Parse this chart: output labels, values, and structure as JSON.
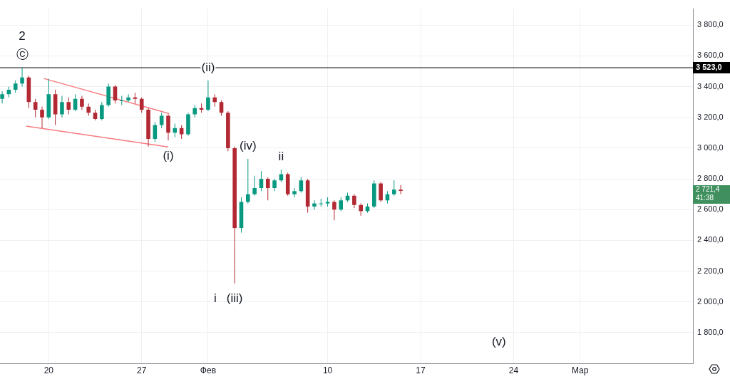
{
  "chart_data": {
    "type": "candlestick",
    "x": [
      "--01-16T12:00",
      "--01-17T00:00",
      "--01-17T12:00",
      "--01-18T00:00",
      "--01-18T12:00",
      "--01-19T00:00",
      "--01-19T12:00",
      "--01-20T00:00",
      "--01-20T12:00",
      "--01-21T00:00",
      "--01-21T12:00",
      "--01-22T00:00",
      "--01-22T12:00",
      "--01-23T00:00",
      "--01-23T12:00",
      "--01-24T00:00",
      "--01-24T12:00",
      "--01-25T00:00",
      "--01-25T12:00",
      "--01-26T00:00",
      "--01-26T12:00",
      "--01-27T00:00",
      "--01-27T12:00",
      "--01-28T00:00",
      "--01-28T12:00",
      "--01-29T00:00",
      "--01-29T12:00",
      "--01-30T00:00",
      "--01-30T12:00",
      "--01-31T00:00",
      "--01-31T12:00",
      "--02-01T00:00",
      "--02-01T12:00",
      "--02-02T00:00",
      "--02-02T12:00",
      "--02-03T00:00",
      "--02-03T12:00",
      "--02-04T00:00",
      "--02-04T12:00",
      "--02-05T00:00",
      "--02-05T12:00",
      "--02-06T00:00",
      "--02-06T12:00",
      "--02-07T00:00",
      "--02-07T12:00",
      "--02-08T00:00",
      "--02-08T12:00",
      "--02-09T00:00",
      "--02-09T12:00",
      "--02-10T00:00",
      "--02-10T12:00",
      "--02-11T00:00",
      "--02-11T12:00",
      "--02-12T00:00",
      "--02-12T12:00",
      "--02-13T00:00",
      "--02-13T12:00",
      "--02-14T00:00",
      "--02-14T12:00",
      "--02-15T00:00",
      "--02-15T12:00"
    ],
    "ohlc": [
      [
        3320,
        3370,
        3290,
        3350
      ],
      [
        3350,
        3400,
        3330,
        3380
      ],
      [
        3380,
        3440,
        3360,
        3420
      ],
      [
        3420,
        3523,
        3400,
        3460
      ],
      [
        3460,
        3470,
        3260,
        3300
      ],
      [
        3300,
        3320,
        3200,
        3250
      ],
      [
        3250,
        3270,
        3130,
        3200
      ],
      [
        3200,
        3450,
        3190,
        3350
      ],
      [
        3350,
        3380,
        3150,
        3220
      ],
      [
        3220,
        3340,
        3200,
        3300
      ],
      [
        3300,
        3330,
        3220,
        3250
      ],
      [
        3250,
        3350,
        3240,
        3320
      ],
      [
        3320,
        3340,
        3250,
        3270
      ],
      [
        3270,
        3290,
        3210,
        3230
      ],
      [
        3230,
        3250,
        3180,
        3190
      ],
      [
        3190,
        3300,
        3180,
        3280
      ],
      [
        3280,
        3420,
        3270,
        3400
      ],
      [
        3400,
        3410,
        3290,
        3310
      ],
      [
        3310,
        3340,
        3280,
        3310
      ],
      [
        3310,
        3350,
        3300,
        3330
      ],
      [
        3330,
        3360,
        3290,
        3320
      ],
      [
        3320,
        3330,
        3230,
        3250
      ],
      [
        3250,
        3260,
        3010,
        3060
      ],
      [
        3060,
        3170,
        3040,
        3150
      ],
      [
        3150,
        3230,
        3130,
        3210
      ],
      [
        3210,
        3220,
        3050,
        3100
      ],
      [
        3100,
        3160,
        3070,
        3130
      ],
      [
        3130,
        3150,
        3060,
        3090
      ],
      [
        3090,
        3230,
        3080,
        3220
      ],
      [
        3220,
        3280,
        3200,
        3260
      ],
      [
        3260,
        3290,
        3230,
        3250
      ],
      [
        3250,
        3440,
        3240,
        3330
      ],
      [
        3330,
        3350,
        3270,
        3300
      ],
      [
        3300,
        3310,
        3210,
        3230
      ],
      [
        3230,
        3240,
        2980,
        3000
      ],
      [
        3000,
        3010,
        2120,
        2480
      ],
      [
        2480,
        2680,
        2450,
        2650
      ],
      [
        2650,
        2930,
        2640,
        2700
      ],
      [
        2700,
        2820,
        2690,
        2740
      ],
      [
        2740,
        2850,
        2720,
        2800
      ],
      [
        2800,
        2810,
        2660,
        2740
      ],
      [
        2740,
        2800,
        2720,
        2790
      ],
      [
        2790,
        2860,
        2780,
        2830
      ],
      [
        2830,
        2840,
        2690,
        2700
      ],
      [
        2700,
        2740,
        2680,
        2720
      ],
      [
        2720,
        2810,
        2710,
        2790
      ],
      [
        2790,
        2800,
        2580,
        2620
      ],
      [
        2620,
        2660,
        2600,
        2640
      ],
      [
        2640,
        2670,
        2620,
        2640
      ],
      [
        2640,
        2680,
        2620,
        2650
      ],
      [
        2650,
        2660,
        2530,
        2600
      ],
      [
        2600,
        2680,
        2590,
        2660
      ],
      [
        2660,
        2710,
        2650,
        2690
      ],
      [
        2690,
        2700,
        2610,
        2630
      ],
      [
        2630,
        2640,
        2560,
        2590
      ],
      [
        2590,
        2640,
        2580,
        2620
      ],
      [
        2620,
        2790,
        2610,
        2770
      ],
      [
        2770,
        2780,
        2650,
        2660
      ],
      [
        2660,
        2720,
        2640,
        2700
      ],
      [
        2700,
        2790,
        2690,
        2730
      ],
      [
        2730,
        2760,
        2700,
        2721.4
      ]
    ],
    "series": [
      {
        "type": "line",
        "color": "#f77c80",
        "x": [
          "--01-19T15:00",
          "--01-29T02:00"
        ],
        "values": [
          3453,
          3224
        ]
      },
      {
        "type": "line",
        "color": "#f77c80",
        "x": [
          "--01-18T07:00",
          "--01-29T00:00"
        ],
        "values": [
          3143,
          3008
        ]
      }
    ],
    "xlim": [
      "--01-16T08:00",
      "--03-09T12:00"
    ],
    "xticks": [
      {
        "value": "--01-20",
        "label": "20"
      },
      {
        "value": "--01-27",
        "label": "27"
      },
      {
        "value": "--02-01",
        "label": "Фев"
      },
      {
        "value": "--02-10",
        "label": "10"
      },
      {
        "value": "--02-17",
        "label": "17"
      },
      {
        "value": "--02-24",
        "label": "24"
      },
      {
        "value": "--03-01",
        "label": "Мар"
      }
    ],
    "ylim": [
      1600,
      3905
    ],
    "yticks": [
      {
        "value": 1800,
        "label": "1 800,0"
      },
      {
        "value": 2000,
        "label": "2 000,0"
      },
      {
        "value": 2200,
        "label": "2 200,0"
      },
      {
        "value": 2400,
        "label": "2 400,0"
      },
      {
        "value": 2600,
        "label": "2 600,0"
      },
      {
        "value": 2800,
        "label": "2 800,0"
      },
      {
        "value": 3000,
        "label": "3 000,0"
      },
      {
        "value": 3200,
        "label": "3 200,0"
      },
      {
        "value": 3400,
        "label": "3 400,0"
      },
      {
        "value": 3600,
        "label": "3 600,0"
      },
      {
        "value": 3800,
        "label": "3 800,0"
      }
    ],
    "ref_lines": [
      {
        "axis": "y",
        "value": 3523,
        "label": "3 523,0",
        "color": "#000000"
      }
    ],
    "annotations": [
      {
        "text": "2",
        "x": "--01-18T00:00",
        "y": 3523
      },
      {
        "text": "ⓒ",
        "x": "--01-18T00:00",
        "y": 3523
      },
      {
        "text": "(ii)",
        "x": "--02-01T00:00",
        "y": 3440
      },
      {
        "text": "(i)",
        "x": "--01-29T00:00",
        "y": 3050
      },
      {
        "text": "(iv)",
        "x": "--02-04T00:00",
        "y": 2930
      },
      {
        "text": "ii",
        "x": "--02-06T12:00",
        "y": 2860
      },
      {
        "text": "i",
        "x": "--02-03T00:00",
        "y": 2120
      },
      {
        "text": "(iii)",
        "x": "--02-03T00:00",
        "y": 2120
      },
      "(v)",
      "2 721,4",
      "41:38"
    ],
    "grid": true,
    "legend": false
  }
}
